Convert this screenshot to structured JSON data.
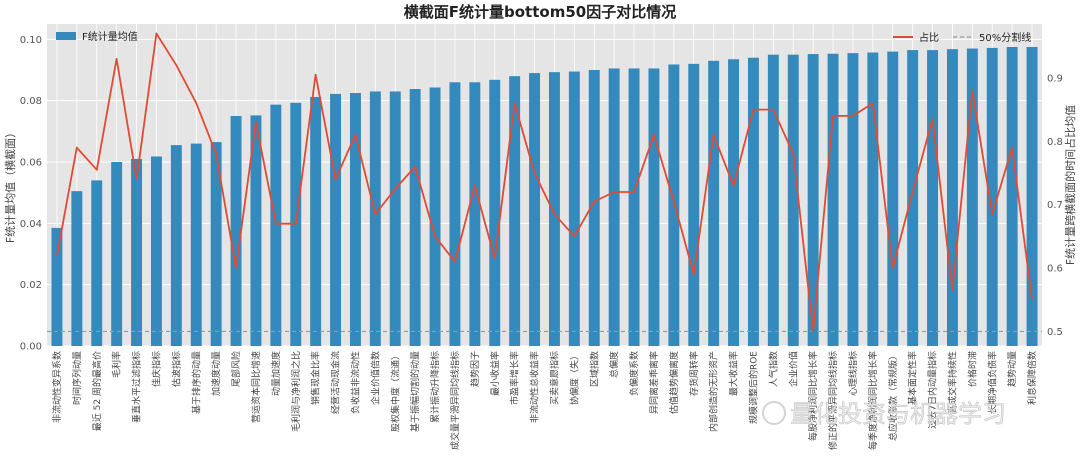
{
  "chart_data": {
    "type": "bar",
    "title": "横截面F统计量bottom50因子对比情况",
    "ylabel": "F统计量均值（横截面）",
    "y2label": "F统计量跨横截面的时间占比均值",
    "ylim": [
      0,
      0.105
    ],
    "y2lim": [
      0.477,
      0.985
    ],
    "yticks": [
      0.0,
      0.02,
      0.04,
      0.06,
      0.08,
      0.1
    ],
    "yticks_labels": [
      "0.00",
      "0.02",
      "0.04",
      "0.06",
      "0.08",
      "0.10"
    ],
    "y2ticks": [
      0.5,
      0.6,
      0.7,
      0.8,
      0.9
    ],
    "y2ticks_labels": [
      "0.5",
      "0.6",
      "0.7",
      "0.8",
      "0.9"
    ],
    "grid": true,
    "legend_left": "top-left",
    "legend_right": "top-right",
    "categories": [
      "非流动性变异系数",
      "时间序列动量",
      "最近 52 周的最高价",
      "毛利率",
      "垂直水平过滤指标",
      "佳庆指标",
      "估波指标",
      "基于排序的动量",
      "加速度动量",
      "尾部风险",
      "营运资本同比增速",
      "动量加速度",
      "毛利润与净利润之比",
      "销售现金比率",
      "经营活动现金流",
      "负收益非流动性",
      "企业价值倍数",
      "股权集中度（流通）",
      "基于振幅切割的动量",
      "累计振动升降指标",
      "成交量平滑异同均线指标",
      "趋势因子",
      "最小收益率",
      "市盈率增长率",
      "非流动性总收益率",
      "买卖意愿指标",
      "协偏度（失）",
      "区域指数",
      "总偏度",
      "负偏度系数",
      "异同离差乖离率",
      "估值趋势偏离度",
      "存货周转率",
      "内部创造的无形资产",
      "最大收益率",
      "规模调整后的ROE",
      "人气指数",
      "企业价值",
      "每股净利润同比增长率",
      "修正的平滑异同均线指标",
      "心理线指标",
      "每季度净利润同比增长率",
      "总应收账款（常规版）",
      "基本面定性率",
      "过去7日内动量指标",
      "高成交率持续性",
      "价格时滞",
      "长期净值负债率",
      "趋势动量",
      "利息保障倍数"
    ],
    "series": [
      {
        "name": "F统计量均值",
        "kind": "bar",
        "color": "#348ABD",
        "values": [
          0.0385,
          0.0505,
          0.054,
          0.06,
          0.061,
          0.0618,
          0.0655,
          0.066,
          0.0665,
          0.075,
          0.0752,
          0.0787,
          0.0793,
          0.0812,
          0.0822,
          0.0825,
          0.083,
          0.083,
          0.0838,
          0.0843,
          0.086,
          0.086,
          0.0868,
          0.088,
          0.089,
          0.0893,
          0.0895,
          0.09,
          0.0905,
          0.0905,
          0.0905,
          0.0918,
          0.092,
          0.093,
          0.0935,
          0.094,
          0.095,
          0.095,
          0.0952,
          0.0953,
          0.0955,
          0.0957,
          0.096,
          0.0965,
          0.0965,
          0.0968,
          0.097,
          0.0972,
          0.0975,
          0.0975
        ]
      },
      {
        "name": "占比",
        "kind": "line",
        "color": "#E24A33",
        "values": [
          0.62,
          0.79,
          0.755,
          0.93,
          0.74,
          0.97,
          0.92,
          0.86,
          0.78,
          0.6,
          0.83,
          0.67,
          0.67,
          0.905,
          0.74,
          0.81,
          0.685,
          0.725,
          0.76,
          0.65,
          0.61,
          0.73,
          0.615,
          0.86,
          0.75,
          0.685,
          0.65,
          0.705,
          0.72,
          0.72,
          0.81,
          0.705,
          0.59,
          0.81,
          0.73,
          0.85,
          0.85,
          0.78,
          0.5,
          0.84,
          0.84,
          0.86,
          0.6,
          0.72,
          0.835,
          0.565,
          0.88,
          0.685,
          0.79,
          0.55
        ]
      }
    ],
    "reference_line": {
      "name": "50%分割线",
      "value": 0.5,
      "color": "#999999"
    }
  },
  "watermark": "量化投资与机器学习"
}
